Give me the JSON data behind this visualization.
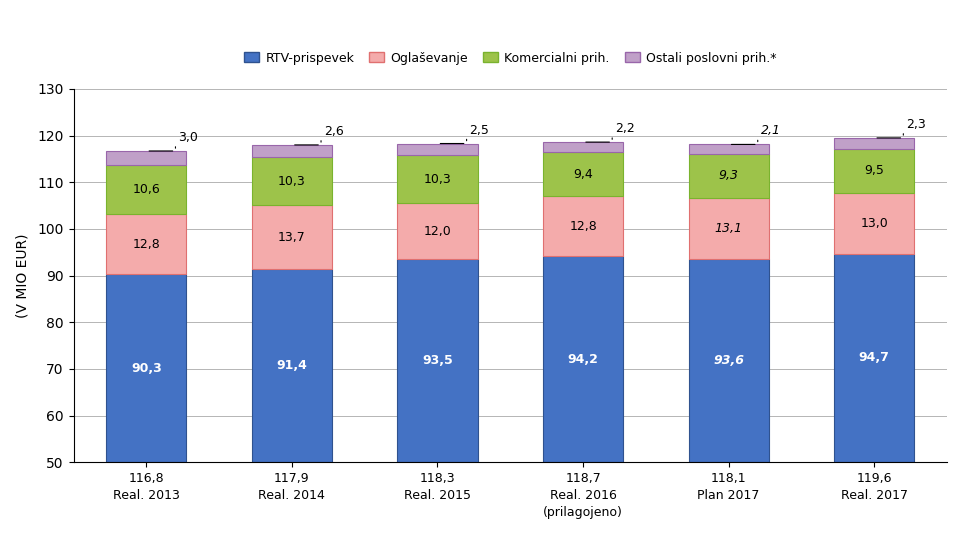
{
  "categories": [
    "116,8\nReal. 2013",
    "117,9\nReal. 2014",
    "118,3\nReal. 2015",
    "118,7\nReal. 2016\n(prilagojeno)",
    "118,1\nPlan 2017",
    "119,6\nReal. 2017"
  ],
  "rtv": [
    90.3,
    91.4,
    93.5,
    94.2,
    93.6,
    94.7
  ],
  "oglasevanje": [
    12.8,
    13.7,
    12.0,
    12.8,
    13.1,
    13.0
  ],
  "komercialni": [
    10.6,
    10.3,
    10.3,
    9.4,
    9.3,
    9.5
  ],
  "ostali": [
    3.0,
    2.6,
    2.5,
    2.2,
    2.1,
    2.3
  ],
  "rtv_labels": [
    "90,3",
    "91,4",
    "93,5",
    "94,2",
    "93,6",
    "94,7"
  ],
  "oglasevanje_labels": [
    "12,8",
    "13,7",
    "12,0",
    "12,8",
    "13,1",
    "13,0"
  ],
  "komercialni_labels": [
    "10,6",
    "10,3",
    "10,3",
    "9,4",
    "9,3",
    "9,5"
  ],
  "ostali_labels": [
    "3,0",
    "2,6",
    "2,5",
    "2,2",
    "2,1",
    "2,3"
  ],
  "italic_bars": [
    4
  ],
  "color_rtv": "#4472C4",
  "color_oglasevanje": "#F4ABAB",
  "color_komercialni": "#9DC34A",
  "color_ostali": "#C0A0C8",
  "color_rtv_border": "#2F528F",
  "color_oglasevanje_border": "#E07070",
  "color_komercialni_border": "#7AB32E",
  "color_ostali_border": "#9966AA",
  "ylabel": "(V MIO EUR)",
  "ylim_min": 50,
  "ylim_max": 130,
  "ybase": 50,
  "yticks": [
    50,
    60,
    70,
    80,
    90,
    100,
    110,
    120,
    130
  ],
  "legend_labels": [
    "RTV-prispevek",
    "Oglaševanje",
    "Komercialni prih.",
    "Ostali poslovni prih.*"
  ],
  "bar_width": 0.55
}
